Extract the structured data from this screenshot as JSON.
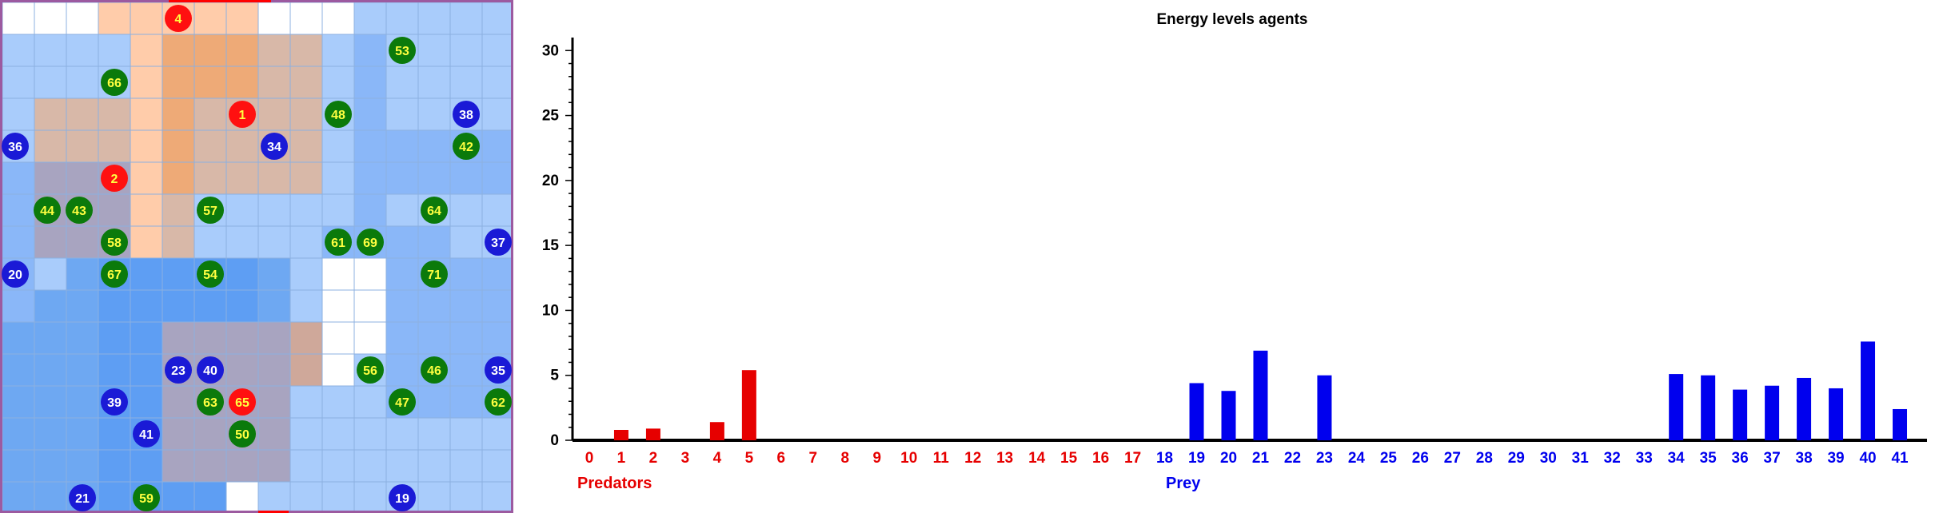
{
  "grid": {
    "cols": 16,
    "rows": 16,
    "cell_colors": {
      "W": "#ffffff",
      "L": "#a9ccfb",
      "M": "#8ab7f8",
      "D": "#6ea8f2",
      "B": "#5e9ef3",
      "P": "#ffccaa",
      "O": "#eeaa77",
      "T": "#d8b8a8",
      "G": "#a8a4c0",
      "R": "#cfa89a"
    },
    "rows_map": [
      "WWWPPPPPWWWLLLLL",
      "LLLLPOOOTTLMLLLL",
      "LLLLPOOOTTLMLLLL",
      "LTTTPOTTTTLMLLLL",
      "LTTTPOTTTTLMMMMM",
      "MGGGPOTTTTLMMMMM",
      "MGGGPTLLLLLMLLLL",
      "MGGGPTLLLLMMMMLL",
      "MLDBBBBBDLWWMMMM",
      "MDDBBBBBDLWWMMMM",
      "DDDBBGGGGRWWMMMM",
      "DDDBBGGGGRWLMMMM",
      "DDDBBGGGGLLLMMMM",
      "DDDBBGGGGLLLLLLL",
      "DDDBBGGGGLLLLLLL",
      "DDDBBBBWLLLLLLLL"
    ],
    "agents": [
      {
        "label": "4",
        "type": "predator",
        "col": 5.5,
        "row": 0.5
      },
      {
        "label": "53",
        "type": "prey-green",
        "col": 12.5,
        "row": 1.5
      },
      {
        "label": "66",
        "type": "prey-green",
        "col": 3.5,
        "row": 2.5
      },
      {
        "label": "1",
        "type": "predator",
        "col": 7.5,
        "row": 3.5
      },
      {
        "label": "48",
        "type": "prey-green",
        "col": 10.5,
        "row": 3.5
      },
      {
        "label": "38",
        "type": "prey-blue",
        "col": 14.5,
        "row": 3.5
      },
      {
        "label": "36",
        "type": "prey-blue",
        "col": 0.4,
        "row": 4.5
      },
      {
        "label": "34",
        "type": "prey-blue",
        "col": 8.5,
        "row": 4.5
      },
      {
        "label": "42",
        "type": "prey-green",
        "col": 14.5,
        "row": 4.5
      },
      {
        "label": "2",
        "type": "predator",
        "col": 3.5,
        "row": 5.5
      },
      {
        "label": "44",
        "type": "prey-green",
        "col": 1.4,
        "row": 6.5
      },
      {
        "label": "43",
        "type": "prey-green",
        "col": 2.4,
        "row": 6.5
      },
      {
        "label": "57",
        "type": "prey-green",
        "col": 6.5,
        "row": 6.5
      },
      {
        "label": "64",
        "type": "prey-green",
        "col": 13.5,
        "row": 6.5
      },
      {
        "label": "58",
        "type": "prey-green",
        "col": 3.5,
        "row": 7.5
      },
      {
        "label": "61",
        "type": "prey-green",
        "col": 10.5,
        "row": 7.5
      },
      {
        "label": "69",
        "type": "prey-green",
        "col": 11.5,
        "row": 7.5
      },
      {
        "label": "37",
        "type": "prey-blue",
        "col": 15.5,
        "row": 7.5
      },
      {
        "label": "20",
        "type": "prey-blue",
        "col": 0.4,
        "row": 8.5
      },
      {
        "label": "67",
        "type": "prey-green",
        "col": 3.5,
        "row": 8.5
      },
      {
        "label": "54",
        "type": "prey-green",
        "col": 6.5,
        "row": 8.5
      },
      {
        "label": "71",
        "type": "prey-green",
        "col": 13.5,
        "row": 8.5
      },
      {
        "label": "23",
        "type": "prey-blue",
        "col": 5.5,
        "row": 11.5
      },
      {
        "label": "40",
        "type": "prey-blue",
        "col": 6.5,
        "row": 11.5
      },
      {
        "label": "56",
        "type": "prey-green",
        "col": 11.5,
        "row": 11.5
      },
      {
        "label": "46",
        "type": "prey-green",
        "col": 13.5,
        "row": 11.5
      },
      {
        "label": "35",
        "type": "prey-blue",
        "col": 15.5,
        "row": 11.5
      },
      {
        "label": "39",
        "type": "prey-blue",
        "col": 3.5,
        "row": 12.5
      },
      {
        "label": "63",
        "type": "prey-green",
        "col": 6.5,
        "row": 12.5
      },
      {
        "label": "65",
        "type": "predator",
        "col": 7.5,
        "row": 12.5
      },
      {
        "label": "47",
        "type": "prey-green",
        "col": 12.5,
        "row": 12.5
      },
      {
        "label": "62",
        "type": "prey-green",
        "col": 15.5,
        "row": 12.5
      },
      {
        "label": "41",
        "type": "prey-blue",
        "col": 4.5,
        "row": 13.5
      },
      {
        "label": "50",
        "type": "prey-green",
        "col": 7.5,
        "row": 13.5
      },
      {
        "label": "21",
        "type": "prey-blue",
        "col": 2.5,
        "row": 15.5
      },
      {
        "label": "59",
        "type": "prey-green",
        "col": 4.5,
        "row": 15.5
      },
      {
        "label": "19",
        "type": "prey-blue",
        "col": 12.5,
        "row": 15.5
      }
    ],
    "agent_colors": {
      "predator": "#ff1010",
      "prey-green": "#0b7a0b",
      "prey-blue": "#1a1ad6",
      "predator_text": "#ffff40",
      "prey-green_text": "#ffff40",
      "prey-blue_text": "#ffffff"
    }
  },
  "chart_data": {
    "type": "bar",
    "title": "Energy levels agents",
    "ylim": [
      0,
      31
    ],
    "yticks": [
      0,
      5,
      10,
      15,
      20,
      25,
      30
    ],
    "groups": [
      {
        "name": "Predators",
        "color": "#e60000",
        "categories": [
          "0",
          "1",
          "2",
          "3",
          "4",
          "5",
          "6",
          "7",
          "8",
          "9",
          "10",
          "11",
          "12",
          "13",
          "14",
          "15",
          "16",
          "17"
        ],
        "values": [
          0,
          0.8,
          0.9,
          0,
          1.4,
          5.4,
          0,
          0,
          0,
          0,
          0,
          0,
          0,
          0,
          0,
          0,
          0,
          0
        ]
      },
      {
        "name": "Prey",
        "color": "#0000ee",
        "categories": [
          "18",
          "19",
          "20",
          "21",
          "22",
          "23",
          "24",
          "25",
          "26",
          "27",
          "28",
          "29",
          "30",
          "31",
          "32",
          "33",
          "34",
          "35",
          "36",
          "37",
          "38",
          "39",
          "40",
          "41"
        ],
        "values": [
          0,
          4.4,
          3.8,
          6.9,
          0,
          5.0,
          0,
          0,
          0,
          0,
          0,
          0,
          0,
          0,
          0,
          0,
          5.1,
          5.0,
          3.9,
          4.2,
          4.8,
          4.0,
          7.6,
          2.4
        ]
      }
    ]
  }
}
